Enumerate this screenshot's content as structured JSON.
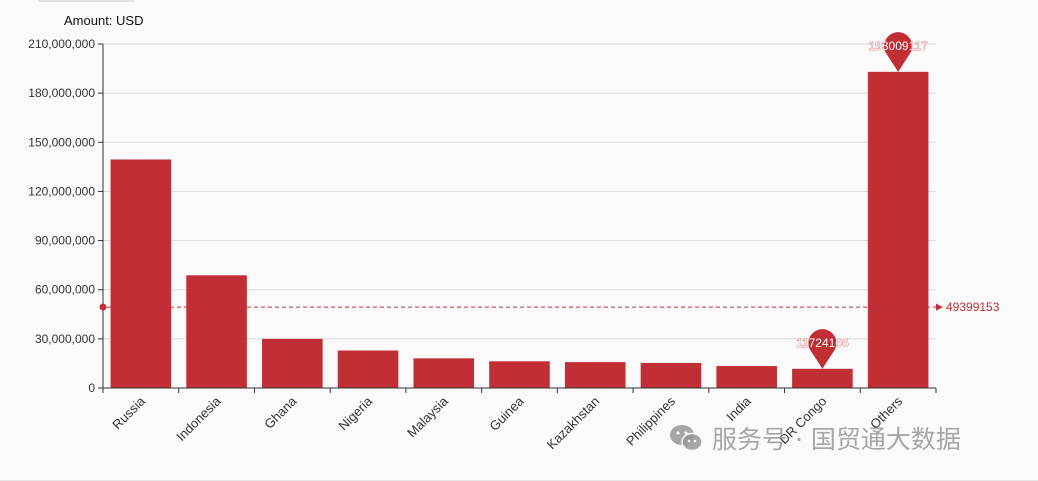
{
  "watermark": {
    "text": "服务号 · 国贸通大数据",
    "icon": "wechat-icon"
  },
  "chart_data": {
    "type": "bar",
    "title": "",
    "unit_label": "Amount: USD",
    "xlabel": "",
    "ylabel": "",
    "categories": [
      "Russia",
      "Indonesia",
      "Ghana",
      "Nigeria",
      "Malaysia",
      "Guinea",
      "Kazakhstan",
      "Philippines",
      "India",
      "DR Congo",
      "Others"
    ],
    "series": [
      {
        "values": [
          139500000,
          68800000,
          30000000,
          22900000,
          18100000,
          16300000,
          15800000,
          15300000,
          13400000,
          11724166,
          193009117
        ]
      }
    ],
    "ylim": [
      0,
      210000000
    ],
    "yticks": [
      "0",
      "30,000,000",
      "60,000,000",
      "90,000,000",
      "120,000,000",
      "150,000,000",
      "180,000,000",
      "210,000,000"
    ],
    "ytick_values": [
      0,
      30000000,
      60000000,
      90000000,
      120000000,
      150000000,
      180000000,
      210000000
    ],
    "mark_points": [
      {
        "category": "Others",
        "value": 193009117,
        "label": "193009117"
      },
      {
        "category": "DR Congo",
        "value": 11724166,
        "label": "11724166"
      }
    ],
    "mark_line": {
      "value": 49399153,
      "label": "49399153"
    },
    "colors": {
      "bar": "#c12e34",
      "grid": "#d9d9d9",
      "axis": "#333333",
      "text": "#333333"
    },
    "grid": true,
    "legend": "none"
  }
}
